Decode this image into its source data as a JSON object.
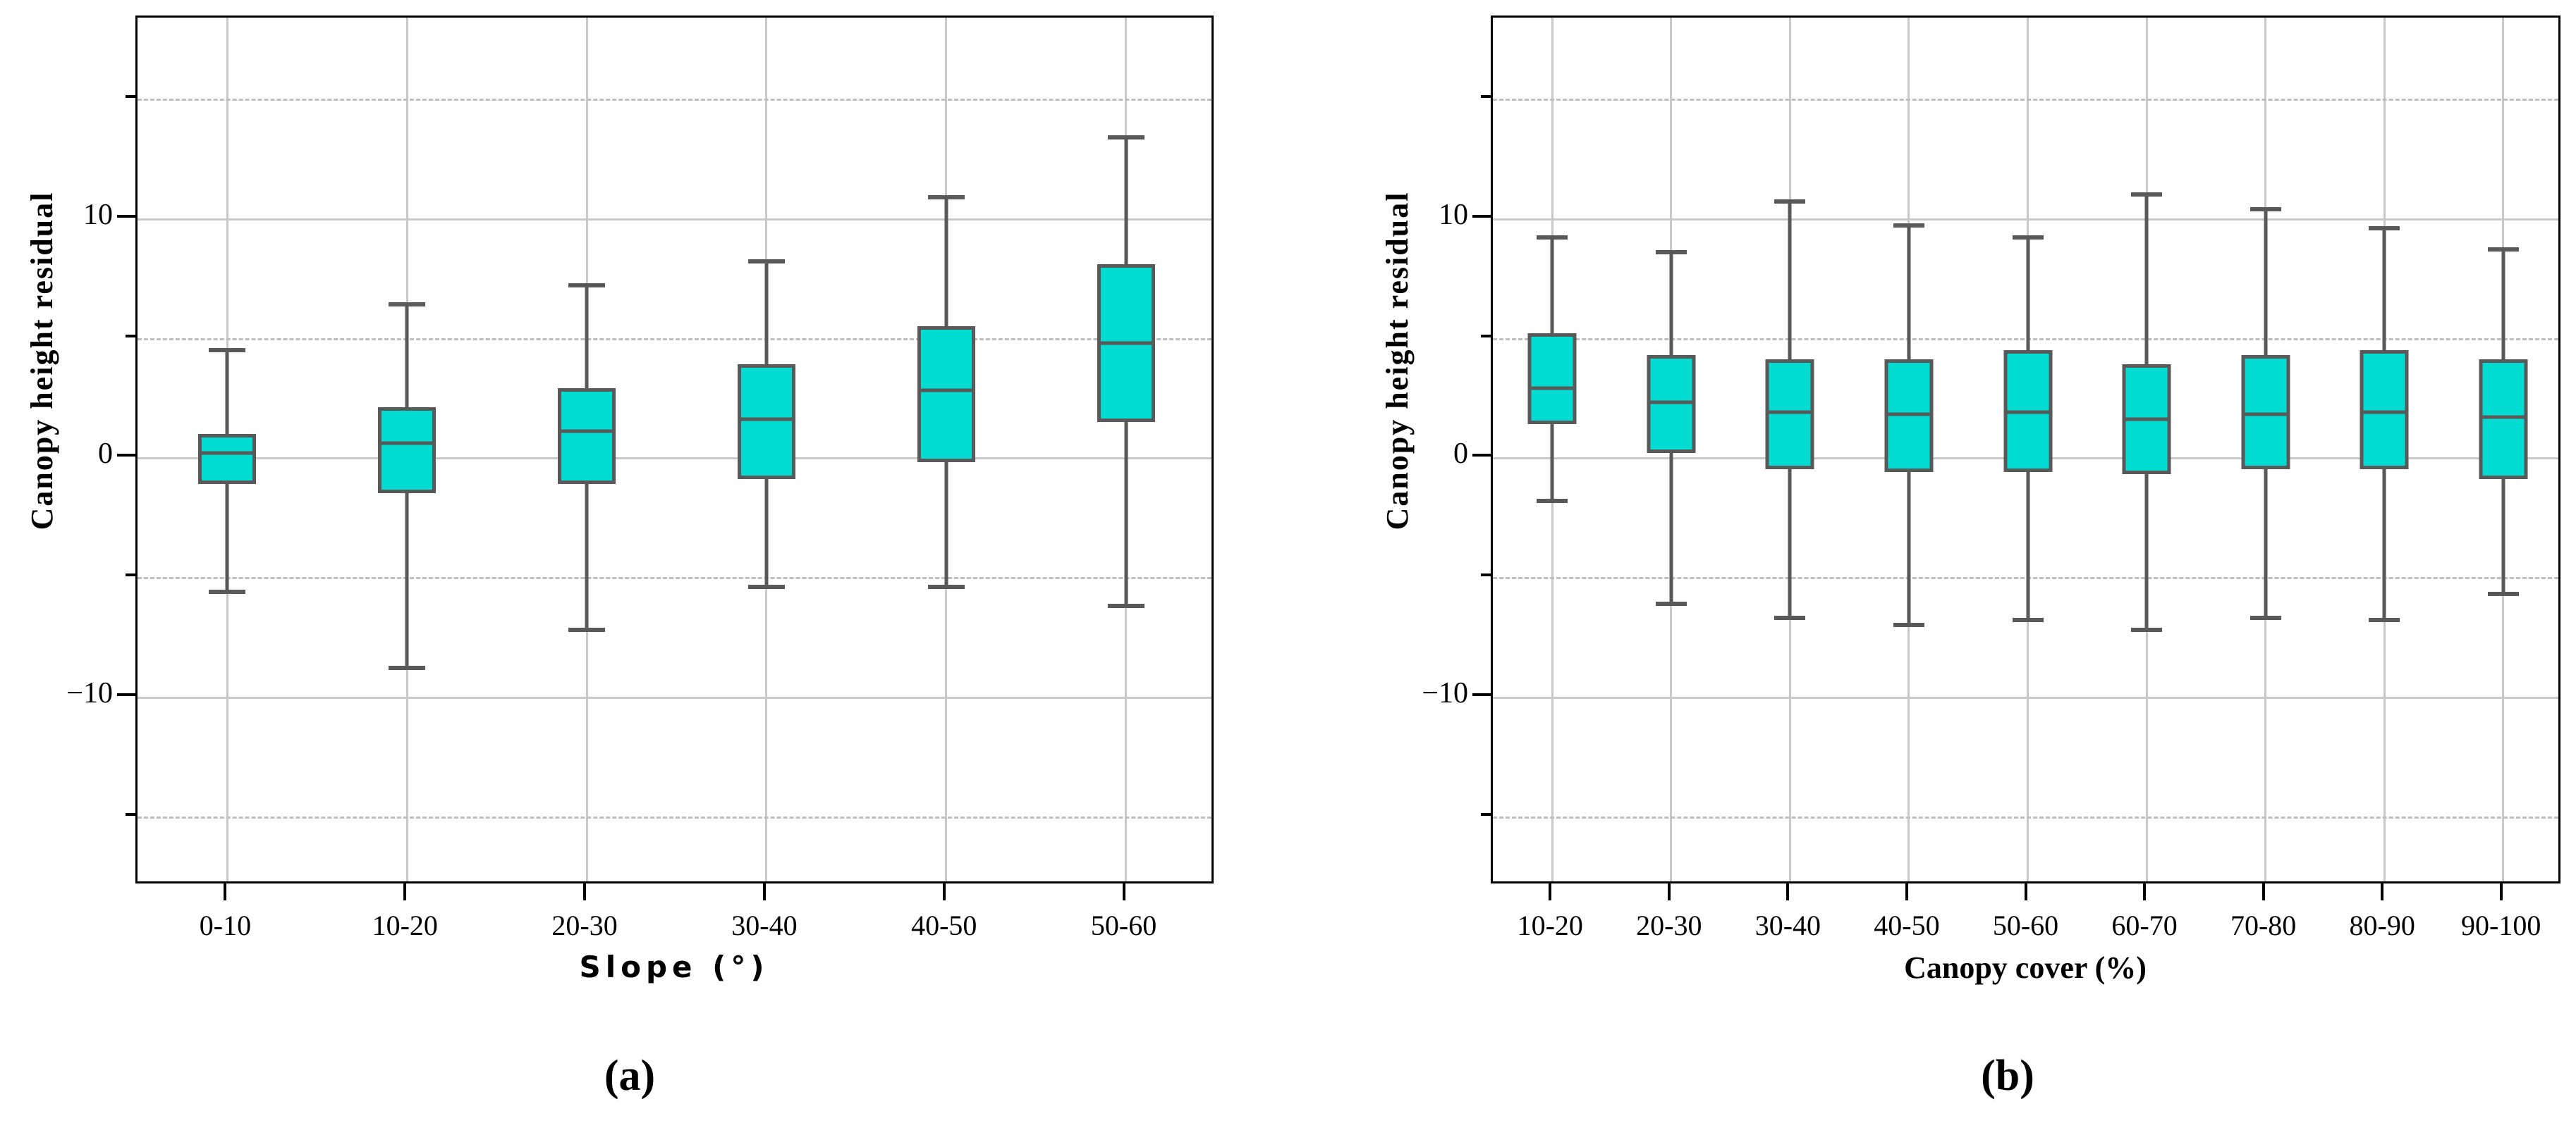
{
  "figure": {
    "background": "#ffffff",
    "panels": [
      {
        "panel_label": "(a)",
        "y_axis_title": "Canopy height residual",
        "x_axis_title": "Slope (°)",
        "y_tick_labels": [
          "10",
          "0",
          "−10"
        ]
      },
      {
        "panel_label": "(b)",
        "y_axis_title": "Canopy height residual",
        "x_axis_title": "Canopy cover (%)",
        "y_tick_labels": [
          "10",
          "0",
          "−10"
        ]
      }
    ]
  },
  "colors": {
    "box_fill": "#00DCD2",
    "box_stroke": "#595959",
    "grid_solid": "#c9c9c9",
    "grid_dashed": "#bfbfbf",
    "frame": "#000000",
    "text": "#000000",
    "background": "#ffffff"
  },
  "chart_data": [
    {
      "type": "boxplot",
      "title": "",
      "xlabel": "Slope (°)",
      "ylabel": "Canopy height residual",
      "categories": [
        "0-10",
        "10-20",
        "20-30",
        "30-40",
        "40-50",
        "50-60"
      ],
      "ylim": [
        -17.9,
        18.4
      ],
      "grid": true,
      "y_major_gridlines": [
        10,
        0,
        -10
      ],
      "y_minor_gridlines_dashed": [
        15,
        5,
        -5,
        -15
      ],
      "y_ticks": [
        {
          "value": 10,
          "label": "10"
        },
        {
          "value": 0,
          "label": "0"
        },
        {
          "value": -10,
          "label": "−10"
        }
      ],
      "series": [
        {
          "category": "0-10",
          "whisker_low": -5.6,
          "q1": -1.1,
          "median": 0.2,
          "q3": 1.0,
          "whisker_high": 4.5
        },
        {
          "category": "10-20",
          "whisker_low": -8.8,
          "q1": -1.5,
          "median": 0.6,
          "q3": 2.1,
          "whisker_high": 6.4
        },
        {
          "category": "20-30",
          "whisker_low": -7.2,
          "q1": -1.1,
          "median": 1.1,
          "q3": 2.9,
          "whisker_high": 7.2
        },
        {
          "category": "30-40",
          "whisker_low": -5.4,
          "q1": -0.9,
          "median": 1.6,
          "q3": 3.9,
          "whisker_high": 8.2
        },
        {
          "category": "40-50",
          "whisker_low": -5.4,
          "q1": -0.2,
          "median": 2.8,
          "q3": 5.5,
          "whisker_high": 10.9
        },
        {
          "category": "50-60",
          "whisker_low": -6.2,
          "q1": 1.5,
          "median": 4.8,
          "q3": 8.1,
          "whisker_high": 13.4
        }
      ]
    },
    {
      "type": "boxplot",
      "title": "",
      "xlabel": "Canopy cover (%)",
      "ylabel": "Canopy height residual",
      "categories": [
        "10-20",
        "20-30",
        "30-40",
        "40-50",
        "50-60",
        "60-70",
        "70-80",
        "80-90",
        "90-100"
      ],
      "ylim": [
        -17.9,
        18.4
      ],
      "grid": true,
      "y_major_gridlines": [
        10,
        0,
        -10
      ],
      "y_minor_gridlines_dashed": [
        15,
        5,
        -5,
        -15
      ],
      "y_ticks": [
        {
          "value": 10,
          "label": "10"
        },
        {
          "value": 0,
          "label": "0"
        },
        {
          "value": -10,
          "label": "−10"
        }
      ],
      "series": [
        {
          "category": "10-20",
          "whisker_low": -1.8,
          "q1": 1.4,
          "median": 2.9,
          "q3": 5.2,
          "whisker_high": 9.2
        },
        {
          "category": "20-30",
          "whisker_low": -6.1,
          "q1": 0.2,
          "median": 2.3,
          "q3": 4.3,
          "whisker_high": 8.6
        },
        {
          "category": "30-40",
          "whisker_low": -6.7,
          "q1": -0.5,
          "median": 1.9,
          "q3": 4.1,
          "whisker_high": 10.7
        },
        {
          "category": "40-50",
          "whisker_low": -7.0,
          "q1": -0.6,
          "median": 1.8,
          "q3": 4.1,
          "whisker_high": 9.7
        },
        {
          "category": "50-60",
          "whisker_low": -6.8,
          "q1": -0.6,
          "median": 1.9,
          "q3": 4.5,
          "whisker_high": 9.2
        },
        {
          "category": "60-70",
          "whisker_low": -7.2,
          "q1": -0.7,
          "median": 1.6,
          "q3": 3.9,
          "whisker_high": 11.0
        },
        {
          "category": "70-80",
          "whisker_low": -6.7,
          "q1": -0.5,
          "median": 1.8,
          "q3": 4.3,
          "whisker_high": 10.4
        },
        {
          "category": "80-90",
          "whisker_low": -6.8,
          "q1": -0.5,
          "median": 1.9,
          "q3": 4.5,
          "whisker_high": 9.6
        },
        {
          "category": "90-100",
          "whisker_low": -5.7,
          "q1": -0.9,
          "median": 1.7,
          "q3": 4.1,
          "whisker_high": 8.7
        }
      ]
    }
  ]
}
